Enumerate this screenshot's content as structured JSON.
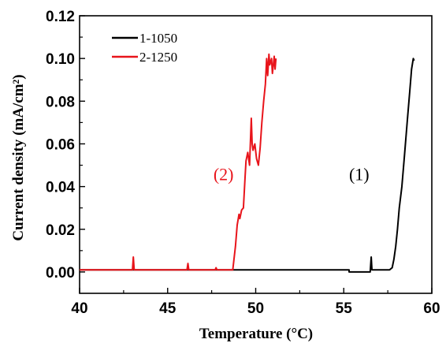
{
  "chart_data": {
    "type": "line",
    "xlabel": "Temperature (°C)",
    "ylabel": "Current density (mA/cm²)",
    "xlim": [
      40,
      60
    ],
    "ylim": [
      -0.01,
      0.12
    ],
    "xticks": [
      "40",
      "45",
      "50",
      "55",
      "60"
    ],
    "yticks": [
      "0.00",
      "0.02",
      "0.04",
      "0.06",
      "0.08",
      "0.10",
      "0.12"
    ],
    "legend_position": "top-left",
    "series": [
      {
        "name": "1-1050",
        "color": "#000000",
        "x": [
          40,
          45,
          50,
          55,
          55.3,
          55.3,
          56.5,
          56.5,
          56.56,
          56.6,
          56.6,
          57.6,
          57.75,
          57.85,
          57.95,
          58.05,
          58.15,
          58.3,
          58.45,
          58.6,
          58.75,
          58.85,
          58.95,
          59.0
        ],
        "values": [
          0.001,
          0.001,
          0.001,
          0.001,
          0.001,
          0.0,
          0.0,
          0.0,
          0.007,
          0.001,
          0.001,
          0.001,
          0.002,
          0.006,
          0.012,
          0.02,
          0.03,
          0.04,
          0.055,
          0.07,
          0.085,
          0.095,
          0.1,
          0.099
        ]
      },
      {
        "name": "2-1250",
        "color": "#e8141b",
        "x": [
          40,
          42.5,
          43.0,
          43.05,
          43.1,
          44.0,
          46.1,
          46.15,
          46.2,
          47.7,
          47.75,
          47.8,
          48.7,
          48.85,
          48.95,
          49.05,
          49.1,
          49.2,
          49.3,
          49.4,
          49.45,
          49.55,
          49.65,
          49.75,
          49.8,
          49.85,
          49.95,
          50.05,
          50.15,
          50.25,
          50.35,
          50.45,
          50.55,
          50.62,
          50.68,
          50.75,
          50.8,
          50.9,
          50.95,
          51.0,
          51.05,
          51.1,
          51.15
        ],
        "values": [
          0.001,
          0.001,
          0.001,
          0.007,
          0.001,
          0.001,
          0.001,
          0.004,
          0.001,
          0.001,
          0.002,
          0.001,
          0.001,
          0.012,
          0.022,
          0.027,
          0.025,
          0.029,
          0.03,
          0.045,
          0.052,
          0.056,
          0.05,
          0.072,
          0.06,
          0.057,
          0.06,
          0.053,
          0.05,
          0.058,
          0.07,
          0.08,
          0.088,
          0.1,
          0.092,
          0.102,
          0.097,
          0.1,
          0.093,
          0.097,
          0.101,
          0.095,
          0.1
        ]
      }
    ],
    "annotations": [
      {
        "text": "(2)",
        "x": 47.6,
        "y": 0.043,
        "color": "#e8141b"
      },
      {
        "text": "(1)",
        "x": 55.3,
        "y": 0.043,
        "color": "#000000"
      }
    ]
  }
}
